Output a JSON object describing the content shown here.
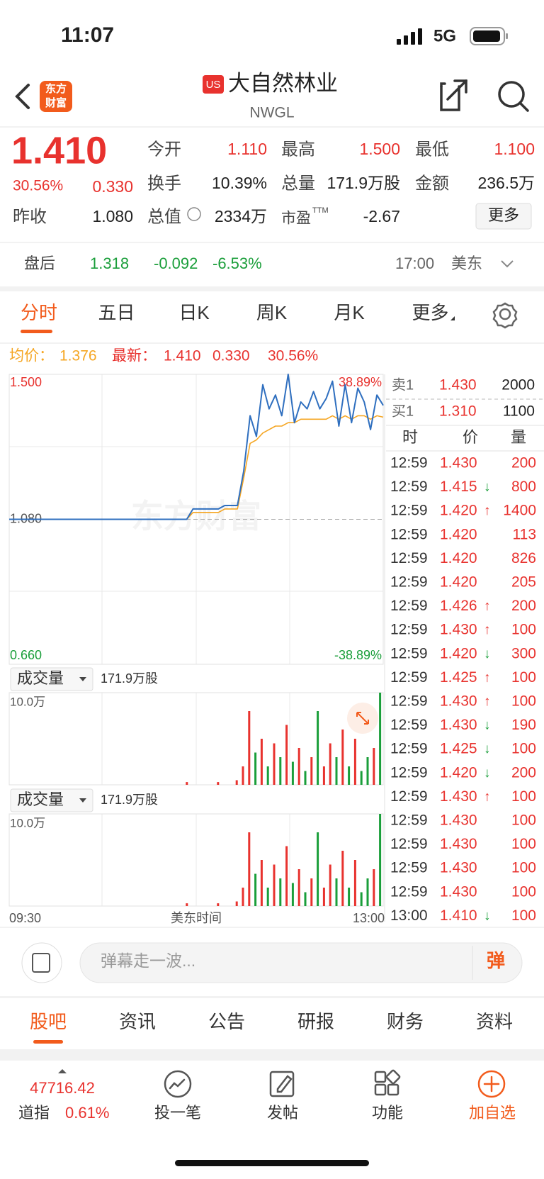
{
  "status": {
    "time": "11:07",
    "network": "5G"
  },
  "header": {
    "logo": [
      "东方",
      "财富"
    ],
    "badge": "US",
    "title": "大自然林业",
    "ticker": "NWGL"
  },
  "quote": {
    "price": "1.410",
    "change_pct": "30.56%",
    "change": "0.330",
    "prev_close": {
      "label": "昨收",
      "value": "1.080"
    },
    "stats": [
      [
        {
          "label": "今开",
          "value": "1.110",
          "color": "#e8322e"
        },
        {
          "label": "最高",
          "value": "1.500",
          "color": "#e8322e"
        },
        {
          "label": "最低",
          "value": "1.100",
          "color": "#e8322e"
        }
      ],
      [
        {
          "label": "换手",
          "value": "10.39%"
        },
        {
          "label": "总量",
          "value": "171.9万股"
        },
        {
          "label": "金额",
          "value": "236.5万"
        }
      ],
      [
        {
          "label": "总值",
          "value": "2334万"
        },
        {
          "label": "市盈",
          "sup": "TTM",
          "value": "-2.67"
        }
      ]
    ],
    "more": "更多"
  },
  "after_hours": {
    "label": "盘后",
    "price": "1.318",
    "change": "-0.092",
    "change_pct": "-6.53%",
    "time": "17:00",
    "market": "美东"
  },
  "tabs": [
    "分时",
    "五日",
    "日K",
    "周K",
    "月K",
    "更多"
  ],
  "info": {
    "avg_label": "均价：",
    "avg": "1.376",
    "latest_label": "最新：",
    "latest": "1.410",
    "change": "0.330",
    "change_pct": "30.56%"
  },
  "watermark": "东方财富",
  "chart_data": [
    {
      "type": "line",
      "ylim": [
        0.66,
        1.5
      ],
      "yticks": [
        {
          "value": 1.5,
          "label": "1.500"
        },
        {
          "value": 1.08,
          "label": "1.080"
        },
        {
          "value": 0.66,
          "label": "0.660"
        }
      ],
      "y2lim": [
        -38.89,
        38.89
      ],
      "y2ticks": [
        {
          "value": 38.89,
          "label": "38.89%"
        },
        {
          "value": -38.89,
          "label": "-38.89%"
        }
      ],
      "series": [
        {
          "color": "#2f6fbf",
          "values": [
            1.08,
            1.08,
            1.08,
            1.08,
            1.08,
            1.08,
            1.08,
            1.08,
            1.08,
            1.08,
            1.08,
            1.08,
            1.08,
            1.08,
            1.08,
            1.08,
            1.08,
            1.08,
            1.08,
            1.08,
            1.08,
            1.08,
            1.08,
            1.08,
            1.08,
            1.08,
            1.08,
            1.08,
            1.08,
            1.11,
            1.11,
            1.11,
            1.11,
            1.11,
            1.12,
            1.12,
            1.12,
            1.22,
            1.38,
            1.32,
            1.47,
            1.4,
            1.44,
            1.38,
            1.5,
            1.36,
            1.42,
            1.4,
            1.45,
            1.4,
            1.43,
            1.48,
            1.35,
            1.47,
            1.36,
            1.46,
            1.42,
            1.34,
            1.44,
            1.41
          ]
        },
        {
          "color": "#f5a623",
          "values": [
            1.08,
            1.08,
            1.08,
            1.08,
            1.08,
            1.08,
            1.08,
            1.08,
            1.08,
            1.08,
            1.08,
            1.08,
            1.08,
            1.08,
            1.08,
            1.08,
            1.08,
            1.08,
            1.08,
            1.08,
            1.08,
            1.08,
            1.08,
            1.08,
            1.08,
            1.08,
            1.08,
            1.08,
            1.08,
            1.1,
            1.1,
            1.1,
            1.1,
            1.1,
            1.11,
            1.11,
            1.11,
            1.2,
            1.3,
            1.31,
            1.33,
            1.34,
            1.35,
            1.35,
            1.36,
            1.36,
            1.37,
            1.37,
            1.37,
            1.37,
            1.37,
            1.38,
            1.37,
            1.38,
            1.37,
            1.38,
            1.38,
            1.37,
            1.38,
            1.376
          ]
        }
      ]
    },
    {
      "type": "bar",
      "panel_label": "成交量",
      "total": "171.9万股",
      "ylim": [
        0,
        10
      ],
      "yticks": [
        {
          "value": 10,
          "label": "10.0万"
        }
      ],
      "up_color": "#e8322e",
      "down_color": "#1a9e3a",
      "values": [
        0,
        0,
        0,
        0,
        0,
        0,
        0,
        0,
        0,
        0,
        0,
        0,
        0,
        0,
        0,
        0,
        0,
        0,
        0,
        0,
        0,
        0,
        0,
        0,
        0,
        0,
        0,
        0,
        0.3,
        0,
        0,
        0,
        0,
        0.3,
        0,
        0,
        0.5,
        2,
        8,
        3.5,
        5,
        2,
        4.5,
        3,
        6.5,
        2.5,
        4,
        1.5,
        3,
        8,
        2,
        4.5,
        3,
        6,
        2,
        5,
        1.5,
        3,
        4,
        10
      ],
      "x_labels": [
        "09:30",
        "美东时间",
        "13:00"
      ]
    }
  ],
  "order_book": [
    {
      "label": "卖1",
      "price": "1.430",
      "qty": "2000"
    },
    {
      "label": "买1",
      "price": "1.310",
      "qty": "1100"
    }
  ],
  "trades": {
    "header": [
      "时",
      "价",
      "量"
    ],
    "rows": [
      [
        "12:59",
        "1.430",
        "",
        "200"
      ],
      [
        "12:59",
        "1.415",
        "↓",
        "800"
      ],
      [
        "12:59",
        "1.420",
        "↑",
        "1400"
      ],
      [
        "12:59",
        "1.420",
        "",
        "113"
      ],
      [
        "12:59",
        "1.420",
        "",
        "826"
      ],
      [
        "12:59",
        "1.420",
        "",
        "205"
      ],
      [
        "12:59",
        "1.426",
        "↑",
        "200"
      ],
      [
        "12:59",
        "1.430",
        "↑",
        "100"
      ],
      [
        "12:59",
        "1.420",
        "↓",
        "300"
      ],
      [
        "12:59",
        "1.425",
        "↑",
        "100"
      ],
      [
        "12:59",
        "1.430",
        "↑",
        "100"
      ],
      [
        "12:59",
        "1.430",
        "↓",
        "190"
      ],
      [
        "12:59",
        "1.425",
        "↓",
        "100"
      ],
      [
        "12:59",
        "1.420",
        "↓",
        "200"
      ],
      [
        "12:59",
        "1.430",
        "↑",
        "100"
      ],
      [
        "12:59",
        "1.430",
        "",
        "100"
      ],
      [
        "12:59",
        "1.430",
        "",
        "100"
      ],
      [
        "12:59",
        "1.430",
        "",
        "100"
      ],
      [
        "12:59",
        "1.430",
        "",
        "100"
      ],
      [
        "13:00",
        "1.410",
        "↓",
        "100"
      ]
    ]
  },
  "comment": {
    "placeholder": "弹幕走一波...",
    "button": "弹"
  },
  "sub_tabs": [
    "股吧",
    "资讯",
    "公告",
    "研报",
    "财务",
    "资料"
  ],
  "bottom": {
    "index_value": "47716.42",
    "index_name": "道指",
    "index_change": "0.61%",
    "nav": [
      "投一笔",
      "发帖",
      "功能",
      "加自选"
    ]
  }
}
